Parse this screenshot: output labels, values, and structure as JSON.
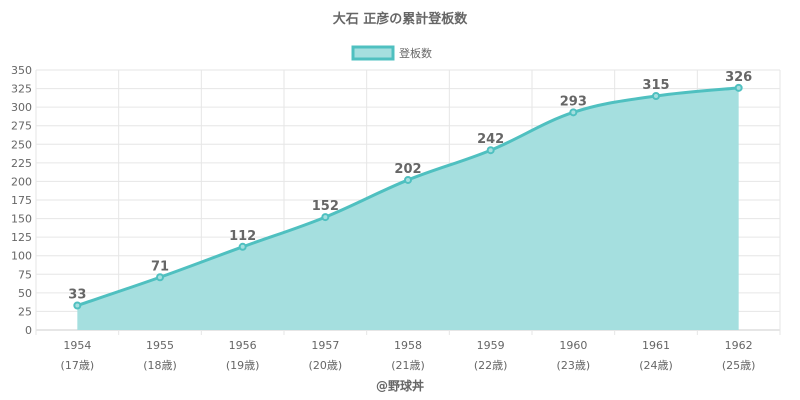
{
  "chart_data": {
    "type": "area",
    "title": "大石 正彦の累計登板数",
    "legend": {
      "label": "登板数",
      "position": "top"
    },
    "categories": [
      "1954",
      "1955",
      "1956",
      "1957",
      "1958",
      "1959",
      "1960",
      "1961",
      "1962"
    ],
    "sublabels": [
      "(17歳)",
      "(18歳)",
      "(19歳)",
      "(20歳)",
      "(21歳)",
      "(22歳)",
      "(23歳)",
      "(24歳)",
      "(25歳)"
    ],
    "series": [
      {
        "name": "登板数",
        "values": [
          33,
          71,
          112,
          152,
          202,
          242,
          293,
          315,
          326
        ]
      }
    ],
    "ylim": [
      0,
      350
    ],
    "ytick_step": 25,
    "grid": true,
    "colors": {
      "line": "#4fc0c0",
      "fill": "#a5dfdf",
      "point": "#4fc0c0",
      "text": "#666666",
      "grid": "#e6e6e6"
    }
  },
  "footer": {
    "credit": "@野球丼"
  }
}
